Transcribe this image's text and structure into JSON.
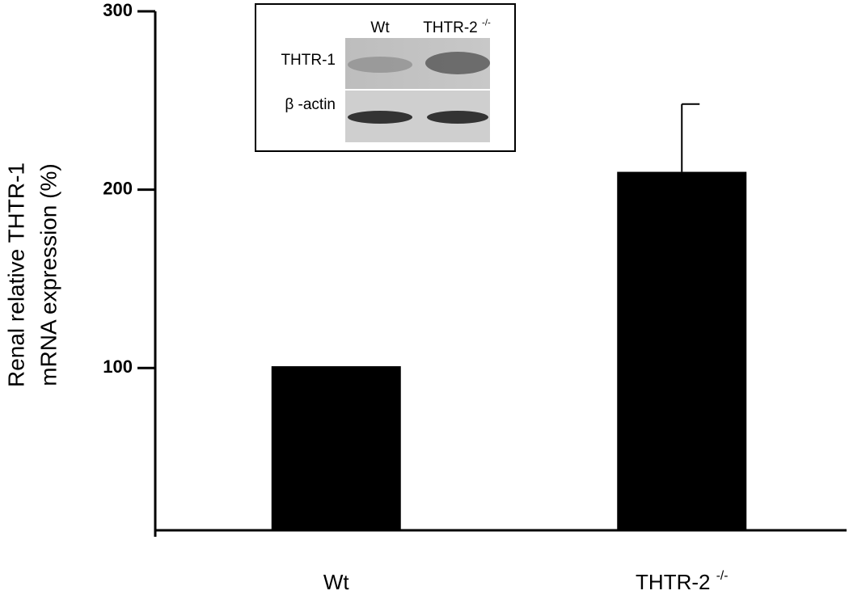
{
  "chart_data": {
    "type": "bar",
    "y_label": [
      "Renal relative THTR-1",
      "mRNA expression (%)"
    ],
    "categories": [
      "Wt",
      "THTR-2 -/-"
    ],
    "values": [
      101,
      210
    ],
    "errors": [
      null,
      38
    ],
    "color": "#000000",
    "ylim": [
      9,
      300
    ],
    "yticks": [
      100,
      200,
      300
    ],
    "inset": {
      "lanes": [
        "Wt",
        "THTR-2 -/-"
      ],
      "rows": [
        "THTR-1",
        "β -actin"
      ]
    }
  }
}
